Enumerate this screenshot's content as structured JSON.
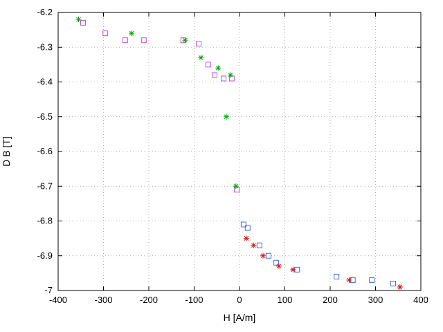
{
  "chart_data": {
    "type": "scatter",
    "title": "",
    "xlabel": "H [A/m]",
    "ylabel": "D B [T]",
    "xlim": [
      -400,
      400
    ],
    "ylim": [
      -7,
      -6.2
    ],
    "grid": true,
    "legend": false,
    "xticks": [
      {
        "v": -400,
        "label": "-400"
      },
      {
        "v": -300,
        "label": "-300"
      },
      {
        "v": -200,
        "label": "-200"
      },
      {
        "v": -100,
        "label": "-100"
      },
      {
        "v": 0,
        "label": "0"
      },
      {
        "v": 100,
        "label": "100"
      },
      {
        "v": 200,
        "label": "200"
      },
      {
        "v": 300,
        "label": "300"
      },
      {
        "v": 400,
        "label": "400"
      }
    ],
    "yticks": [
      {
        "v": -7,
        "label": "-7"
      },
      {
        "v": -6.9,
        "label": "-6.9"
      },
      {
        "v": -6.8,
        "label": "-6.8"
      },
      {
        "v": -6.7,
        "label": "-6.7"
      },
      {
        "v": -6.6,
        "label": "-6.6"
      },
      {
        "v": -6.5,
        "label": "-6.5"
      },
      {
        "v": -6.4,
        "label": "-6.4"
      },
      {
        "v": -6.3,
        "label": "-6.3"
      },
      {
        "v": -6.2,
        "label": "-6.2"
      }
    ],
    "series": [
      {
        "name": "magenta-squares",
        "marker": "square",
        "color": "#c050d8",
        "points": [
          [
            -345,
            -6.23
          ],
          [
            -296,
            -6.26
          ],
          [
            -252,
            -6.28
          ],
          [
            -211,
            -6.28
          ],
          [
            -124,
            -6.28
          ],
          [
            -90,
            -6.29
          ],
          [
            -69,
            -6.35
          ],
          [
            -55,
            -6.38
          ],
          [
            -35,
            -6.39
          ],
          [
            -17,
            -6.39
          ],
          [
            -6,
            -6.71
          ]
        ]
      },
      {
        "name": "green-stars",
        "marker": "star",
        "color": "#00a800",
        "points": [
          [
            -355,
            -6.22
          ],
          [
            -238,
            -6.26
          ],
          [
            -120,
            -6.28
          ],
          [
            -85,
            -6.33
          ],
          [
            -47,
            -6.36
          ],
          [
            -20,
            -6.38
          ],
          [
            -29,
            -6.5
          ],
          [
            -8,
            -6.7
          ]
        ]
      },
      {
        "name": "blue-squares",
        "marker": "square",
        "color": "#4169e1",
        "points": [
          [
            9,
            -6.81
          ],
          [
            18,
            -6.82
          ],
          [
            44,
            -6.87
          ],
          [
            64,
            -6.9
          ],
          [
            81,
            -6.92
          ],
          [
            127,
            -6.94
          ],
          [
            214,
            -6.96
          ],
          [
            250,
            -6.97
          ],
          [
            292,
            -6.97
          ],
          [
            339,
            -6.98
          ]
        ]
      },
      {
        "name": "red-stars",
        "marker": "star",
        "color": "#e01010",
        "points": [
          [
            15,
            -6.85
          ],
          [
            31,
            -6.87
          ],
          [
            52,
            -6.9
          ],
          [
            87,
            -6.93
          ],
          [
            118,
            -6.94
          ],
          [
            242,
            -6.97
          ],
          [
            354,
            -6.99
          ]
        ]
      }
    ]
  }
}
